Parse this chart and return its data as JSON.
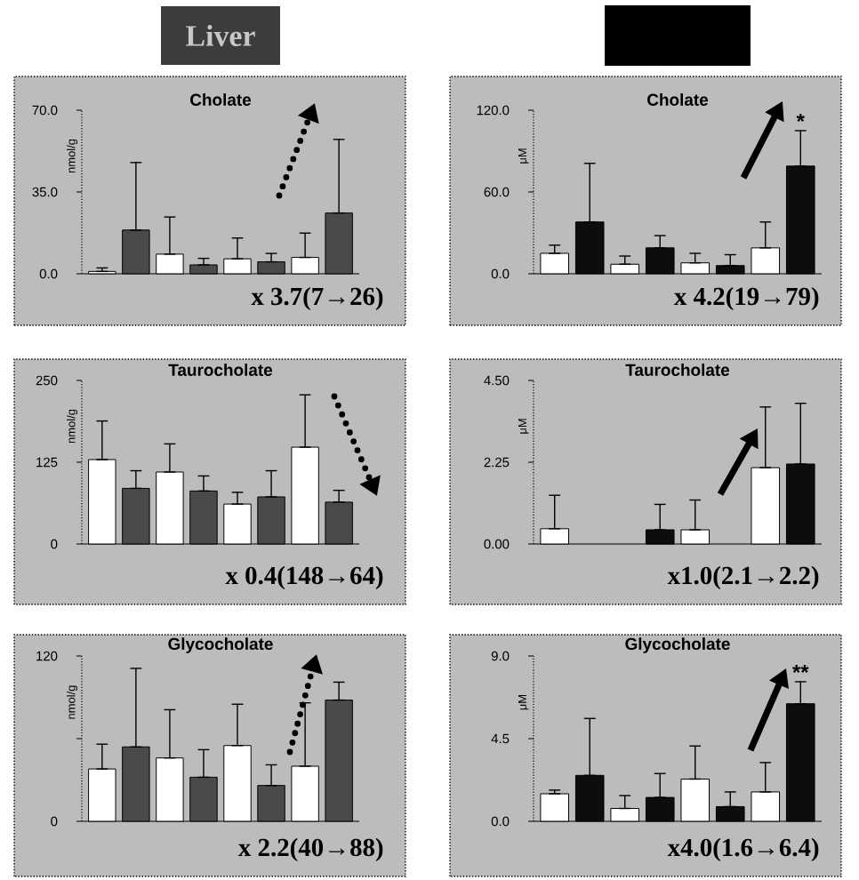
{
  "chart_data": [
    {
      "type": "bar",
      "title": "Cholate",
      "subtitle": "Liver",
      "ylabel": "nmol/g",
      "categories": [
        null,
        null,
        null,
        null,
        null,
        null,
        null,
        null
      ],
      "values": [
        1.0,
        18.7,
        8.4,
        3.8,
        6.4,
        5.1,
        7,
        26
      ],
      "errors": [
        [
          1.0,
          2.5
        ],
        [
          18.7,
          47.6
        ],
        [
          8.4,
          24.3
        ],
        [
          3.8,
          6.6
        ],
        [
          6.4,
          15.3
        ],
        [
          5.1,
          8.7
        ],
        [
          7,
          17.4
        ],
        [
          26,
          57.5
        ]
      ],
      "colors": [
        "#ffffff",
        "#4a4a4a",
        "#ffffff",
        "#4a4a4a",
        "#ffffff",
        "#4a4a4a",
        "#ffffff",
        "#4a4a4a"
      ],
      "ylim": [
        0,
        70
      ],
      "yticks": [
        {
          "value": 0,
          "label": "0.0"
        },
        {
          "value": 35,
          "label": "35.0"
        },
        {
          "value": 70,
          "label": "70.0"
        }
      ],
      "annotations": [
        "x 3.7(7→26)"
      ]
    },
    {
      "type": "bar",
      "title": "Cholate",
      "ylabel": "μM",
      "categories": [
        null,
        null,
        null,
        null,
        null,
        null,
        null,
        null
      ],
      "values": [
        15,
        38,
        7,
        19,
        8,
        6,
        19,
        79
      ],
      "errors": [
        [
          15,
          21
        ],
        [
          38,
          81
        ],
        [
          7,
          13
        ],
        [
          19,
          28
        ],
        [
          8,
          15
        ],
        [
          6,
          14
        ],
        [
          19,
          38
        ],
        [
          79,
          105
        ]
      ],
      "colors": [
        "#ffffff",
        "#0d0d0d",
        "#ffffff",
        "#0d0d0d",
        "#ffffff",
        "#0d0d0d",
        "#ffffff",
        "#0d0d0d"
      ],
      "ylim": [
        0,
        120
      ],
      "yticks": [
        {
          "value": 0,
          "label": "0.0"
        },
        {
          "value": 60,
          "label": "60.0"
        },
        {
          "value": 120,
          "label": "120.0"
        }
      ],
      "annotations": [
        "x 4.2(19→79)",
        "*"
      ]
    },
    {
      "type": "bar",
      "title": "Taurocholate",
      "ylabel": "nmol/g",
      "categories": [
        null,
        null,
        null,
        null,
        null,
        null,
        null,
        null
      ],
      "values": [
        129,
        85,
        110,
        81,
        61,
        72,
        148,
        64
      ],
      "errors": [
        [
          129,
          188
        ],
        [
          85,
          112
        ],
        [
          110,
          153
        ],
        [
          81,
          104
        ],
        [
          61,
          79
        ],
        [
          72,
          112
        ],
        [
          148,
          228
        ],
        [
          64,
          82
        ]
      ],
      "colors": [
        "#ffffff",
        "#4a4a4a",
        "#ffffff",
        "#4a4a4a",
        "#ffffff",
        "#4a4a4a",
        "#ffffff",
        "#4a4a4a"
      ],
      "ylim": [
        0,
        250
      ],
      "yticks": [
        0,
        125,
        250
      ],
      "annotations": [
        "x 0.4(148→64)"
      ]
    },
    {
      "type": "bar",
      "title": "Taurocholate",
      "ylabel": "μM",
      "categories": [
        null,
        null,
        null,
        null,
        null,
        null,
        null,
        null
      ],
      "values": [
        0.42,
        null,
        null,
        0.39,
        0.39,
        null,
        2.1,
        2.2
      ],
      "errors": [
        [
          0.42,
          1.34
        ],
        null,
        null,
        [
          0.39,
          1.09
        ],
        [
          0.39,
          1.21
        ],
        null,
        [
          2.1,
          3.77
        ],
        [
          2.2,
          3.87
        ]
      ],
      "colors": [
        "#ffffff",
        "#0d0d0d",
        "#ffffff",
        "#0d0d0d",
        "#ffffff",
        "#0d0d0d",
        "#ffffff",
        "#0d0d0d"
      ],
      "ylim": [
        0,
        4.5
      ],
      "yticks": [
        {
          "value": 0,
          "label": "0.00"
        },
        2.25,
        {
          "value": 4.5,
          "label": "4.50"
        }
      ],
      "annotations": [
        "x1.0(2.1→2.2)"
      ]
    },
    {
      "type": "bar",
      "title": "Glycocholate",
      "ylabel": "nmol/g",
      "categories": [
        null,
        null,
        null,
        null,
        null,
        null,
        null,
        null
      ],
      "values": [
        38,
        54,
        46,
        32,
        55,
        26,
        40,
        88
      ],
      "errors": [
        [
          38,
          56
        ],
        [
          54,
          111
        ],
        [
          46,
          81
        ],
        [
          32,
          52
        ],
        [
          55,
          85
        ],
        [
          26,
          41
        ],
        [
          40,
          86
        ],
        [
          88,
          101
        ]
      ],
      "colors": [
        "#ffffff",
        "#4a4a4a",
        "#ffffff",
        "#4a4a4a",
        "#ffffff",
        "#4a4a4a",
        "#ffffff",
        "#4a4a4a"
      ],
      "ylim": [
        0,
        120
      ],
      "yticks": [
        0,
        {
          "value": 60,
          "label": null
        },
        120
      ],
      "annotations": [
        "x 2.2(40→88)"
      ]
    },
    {
      "type": "bar",
      "title": "Glycocholate",
      "ylabel": "μM",
      "categories": [
        null,
        null,
        null,
        null,
        null,
        null,
        null,
        null
      ],
      "values": [
        1.5,
        2.5,
        0.7,
        1.3,
        2.3,
        0.8,
        1.6,
        6.4
      ],
      "errors": [
        [
          1.5,
          1.7
        ],
        [
          2.5,
          5.6
        ],
        [
          0.7,
          1.4
        ],
        [
          1.3,
          2.6
        ],
        [
          2.3,
          4.1
        ],
        [
          0.8,
          1.6
        ],
        [
          1.6,
          3.2
        ],
        [
          6.4,
          7.6
        ]
      ],
      "colors": [
        "#ffffff",
        "#0d0d0d",
        "#ffffff",
        "#0d0d0d",
        "#ffffff",
        "#0d0d0d",
        "#ffffff",
        "#0d0d0d"
      ],
      "ylim": [
        0,
        9
      ],
      "yticks": [
        {
          "value": 0,
          "label": "0.0"
        },
        4.5,
        {
          "value": 9,
          "label": "9.0"
        }
      ],
      "annotations": [
        "x4.0(1.6→6.4)",
        "**"
      ]
    }
  ]
}
